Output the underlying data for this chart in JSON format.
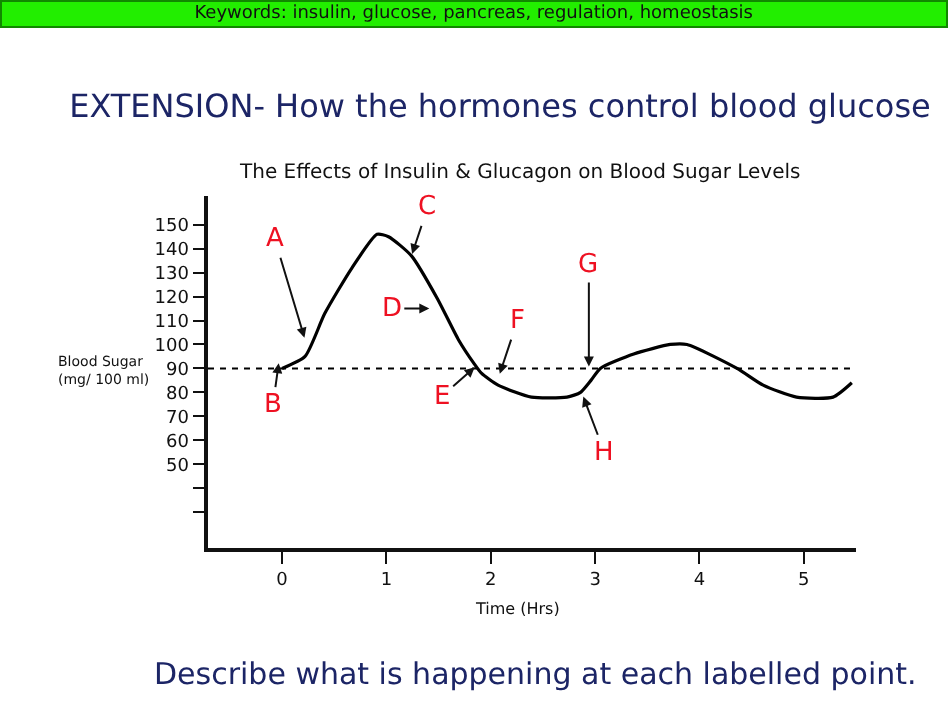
{
  "chart_data": {
    "type": "line",
    "title": "EXTENSION- How the hormones control blood glucose",
    "subtitle": "The Effects of Insulin & Glucagon on Blood Sugar Levels",
    "xlabel": "Time (Hrs)",
    "ylabel": "Blood Sugar\n(mg/ 100 ml)",
    "x": [
      0,
      0.22,
      0.41,
      0.67,
      0.91,
      1.02,
      1.24,
      1.49,
      1.69,
      1.84,
      1.91,
      2.07,
      2.39,
      2.73,
      2.86,
      2.96,
      3.05,
      3.37,
      3.72,
      3.88,
      4.36,
      4.61,
      4.93,
      5.28,
      5.46
    ],
    "series": [
      {
        "color": "#000000",
        "values": [
          90,
          95,
          113,
          132,
          146,
          145,
          137,
          119,
          102,
          92,
          88,
          83,
          78,
          78,
          80,
          85,
          90,
          96,
          100,
          100,
          90,
          83,
          78,
          78,
          84
        ]
      }
    ],
    "xlim": [
      -0.71,
      5.5
    ],
    "ylim": [
      15,
      162
    ],
    "xticks": [
      0,
      1,
      2,
      3,
      4,
      5
    ],
    "yticks": [
      {
        "value": 30,
        "label": null
      },
      {
        "value": 40,
        "label": null
      },
      50,
      60,
      70,
      80,
      90,
      100,
      110,
      120,
      130,
      140,
      150
    ],
    "ref_lines": [
      {
        "axis": "y",
        "value": 90,
        "line_style": "dotted",
        "color": "#000000"
      }
    ],
    "annotations": [
      "Keywords: insulin, glucose, pancreas, regulation, homeostasis",
      "Describe what is happening at each labelled point.",
      {
        "text": "A",
        "x": 0.22,
        "y": 102
      },
      {
        "text": "B",
        "x": -0.03,
        "y": 93
      },
      {
        "text": "C",
        "x": 1.24,
        "y": 137
      },
      {
        "text": "D",
        "x": 1.43,
        "y": 115
      },
      {
        "text": "E",
        "x": 1.86,
        "y": 91
      },
      {
        "text": "F",
        "x": 2.08,
        "y": 87
      },
      {
        "text": "G",
        "x": 2.94,
        "y": 90
      },
      {
        "text": "H",
        "x": 2.88,
        "y": 79
      }
    ],
    "legend": false,
    "marker": "none",
    "line_style": "solid"
  }
}
